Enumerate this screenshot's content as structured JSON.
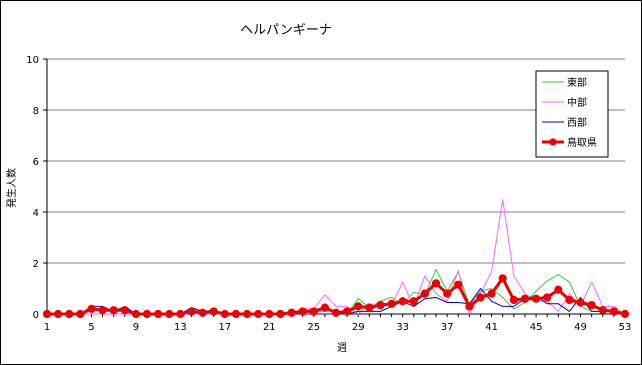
{
  "chart_data": {
    "type": "line",
    "title": "ヘルパンギーナ",
    "xlabel": "週",
    "ylabel": "発生人数",
    "ylim": [
      0,
      10
    ],
    "yticks": [
      0,
      2,
      4,
      6,
      8,
      10
    ],
    "xlim": [
      1,
      53
    ],
    "xticks": [
      1,
      5,
      9,
      13,
      17,
      21,
      25,
      29,
      33,
      37,
      41,
      45,
      49,
      53
    ],
    "grid": true,
    "legend_position": "top-right",
    "x": [
      1,
      2,
      3,
      4,
      5,
      6,
      7,
      8,
      9,
      10,
      11,
      12,
      13,
      14,
      15,
      16,
      17,
      18,
      19,
      20,
      21,
      22,
      23,
      24,
      25,
      26,
      27,
      28,
      29,
      30,
      31,
      32,
      33,
      34,
      35,
      36,
      37,
      38,
      39,
      40,
      41,
      42,
      43,
      44,
      45,
      46,
      47,
      48,
      49,
      50,
      51,
      52,
      53
    ],
    "series": [
      {
        "name": "東部",
        "color": "#33cc33",
        "values": [
          0,
          0,
          0,
          0,
          0.15,
          0.2,
          0.15,
          0.1,
          0,
          0,
          0,
          0,
          0,
          0.15,
          0.1,
          0.1,
          0,
          0,
          0,
          0,
          0,
          0,
          0,
          0.1,
          0.1,
          0.1,
          0.15,
          0,
          0.6,
          0.25,
          0.5,
          0.65,
          0.4,
          0.85,
          0.75,
          1.75,
          0.9,
          1.65,
          0.35,
          0.9,
          1.0,
          0.65,
          0.2,
          0.45,
          0.9,
          1.3,
          1.55,
          1.25,
          0.3,
          0.1,
          0.1,
          0.1,
          0
        ]
      },
      {
        "name": "中部",
        "color": "#ff66ff",
        "values": [
          0,
          0,
          0,
          0,
          0,
          0,
          0,
          0,
          0,
          0,
          0,
          0,
          0,
          0,
          0,
          0,
          0,
          0,
          0,
          0,
          0,
          0,
          0,
          0.2,
          0.2,
          0.75,
          0.3,
          0.3,
          0,
          0.4,
          0.3,
          0.35,
          1.25,
          0.3,
          1.5,
          0.8,
          0.5,
          1.7,
          0,
          0.8,
          1.65,
          4.5,
          1.5,
          0.8,
          0.5,
          0.5,
          0.1,
          0.8,
          0.3,
          1.25,
          0.3,
          0.3,
          0
        ]
      },
      {
        "name": "西部",
        "color": "#0000cc",
        "values": [
          0,
          0,
          0,
          0,
          0.3,
          0.3,
          0.1,
          0.3,
          0,
          0,
          0,
          0,
          0,
          0.25,
          0.1,
          0.15,
          0,
          0,
          0,
          0,
          0,
          0,
          0,
          0,
          0,
          0,
          0,
          0,
          0.1,
          0.1,
          0.1,
          0.3,
          0.5,
          0.3,
          0.6,
          0.65,
          0.45,
          0.45,
          0.4,
          1.0,
          0.5,
          0.3,
          0.3,
          0.6,
          0.7,
          0.4,
          0.4,
          0.1,
          0.65,
          0.1,
          0.1,
          0.1,
          0
        ]
      },
      {
        "name": "鳥取県",
        "color": "#ee0000",
        "values": [
          0,
          0,
          0,
          0,
          0.2,
          0.15,
          0.15,
          0.15,
          0,
          0,
          0,
          0,
          0,
          0.1,
          0.05,
          0.1,
          0,
          0,
          0,
          0,
          0,
          0,
          0.05,
          0.1,
          0.1,
          0.25,
          0.05,
          0.1,
          0.3,
          0.25,
          0.35,
          0.4,
          0.5,
          0.5,
          0.8,
          1.2,
          0.8,
          1.15,
          0.3,
          0.65,
          0.8,
          1.4,
          0.55,
          0.6,
          0.6,
          0.65,
          0.95,
          0.55,
          0.45,
          0.35,
          0.15,
          0.1,
          0
        ]
      }
    ]
  }
}
